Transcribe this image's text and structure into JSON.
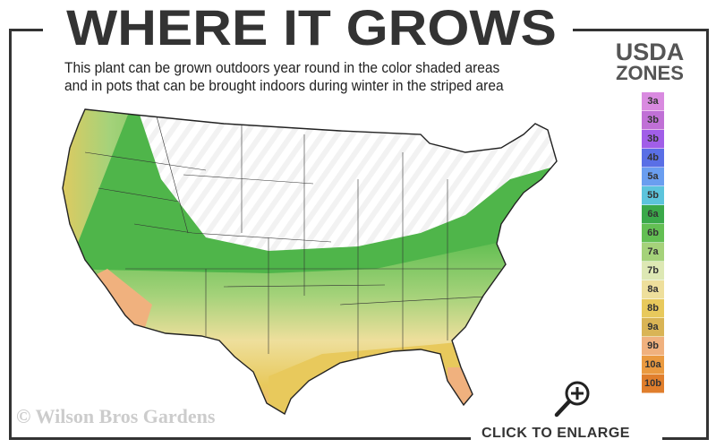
{
  "header": {
    "title": "WHERE IT GROWS",
    "subtitle": "This plant can be grown outdoors year round in the color shaded areas\nand in pots that can be brought indoors during winter in the striped area"
  },
  "legend": {
    "title_line1": "USDA",
    "title_line2": "ZONES",
    "zones": [
      {
        "label": "3a",
        "color": "#d98ae0"
      },
      {
        "label": "3b",
        "color": "#c070d6"
      },
      {
        "label": "3b",
        "color": "#a15ee8"
      },
      {
        "label": "4b",
        "color": "#5a6fe6"
      },
      {
        "label": "5a",
        "color": "#6a9ef0"
      },
      {
        "label": "5b",
        "color": "#5cc4dc"
      },
      {
        "label": "6a",
        "color": "#3aa94a"
      },
      {
        "label": "6b",
        "color": "#63bf53"
      },
      {
        "label": "7a",
        "color": "#a5d27a"
      },
      {
        "label": "7b",
        "color": "#dde8b4"
      },
      {
        "label": "8a",
        "color": "#eedf9c"
      },
      {
        "label": "8b",
        "color": "#e8c95c"
      },
      {
        "label": "9a",
        "color": "#d9b455"
      },
      {
        "label": "9b",
        "color": "#f0b17e"
      },
      {
        "label": "10a",
        "color": "#ea9a40"
      },
      {
        "label": "10b",
        "color": "#e07e2c"
      }
    ]
  },
  "watermark": "© Wilson Bros Gardens",
  "enlarge": {
    "label": "CLICK TO ENLARGE",
    "icon": "zoom-in-icon"
  }
}
